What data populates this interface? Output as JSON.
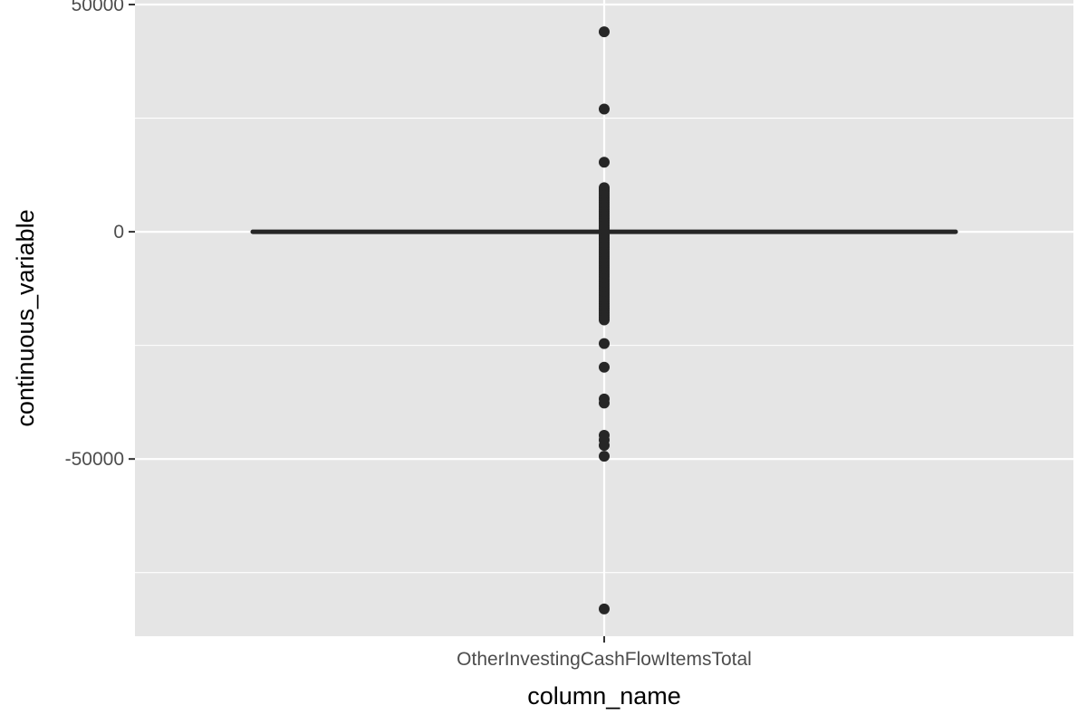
{
  "chart_data": {
    "type": "box",
    "title": "",
    "xlabel": "column_name",
    "ylabel": "continuous_variable",
    "categories": [
      "OtherInvestingCashFlowItemsTotal"
    ],
    "ylim": [
      -89000,
      51000
    ],
    "y_ticks": [
      -50000,
      0,
      50000
    ],
    "y_tick_labels": [
      "-50000",
      "0",
      "50000"
    ],
    "box": {
      "min": 0,
      "q1": 0,
      "median": 0,
      "q3": 0,
      "max": 0
    },
    "outliers": [
      44000,
      27000,
      15300,
      9700,
      9300,
      8900,
      8400,
      7900,
      7400,
      6900,
      6400,
      5900,
      5400,
      4900,
      4400,
      3900,
      3400,
      2900,
      2400,
      1900,
      1400,
      900,
      500,
      -400,
      -900,
      -1400,
      -1900,
      -2400,
      -2900,
      -3400,
      -3900,
      -4400,
      -4900,
      -5400,
      -5900,
      -6400,
      -6900,
      -7400,
      -7900,
      -8400,
      -8900,
      -9400,
      -9900,
      -10400,
      -10900,
      -11400,
      -11900,
      -12400,
      -12900,
      -13400,
      -13900,
      -14400,
      -14900,
      -15400,
      -15900,
      -16400,
      -16900,
      -17400,
      -17900,
      -18400,
      -18900,
      -19400,
      -24600,
      -29800,
      -36800,
      -37700,
      -44800,
      -45800,
      -47000,
      -49400,
      -83000
    ],
    "grid": true,
    "colors": {
      "panel": "#e5e5e5",
      "grid": "#ffffff",
      "points": "#262626",
      "text": "#4d4d4d"
    }
  }
}
